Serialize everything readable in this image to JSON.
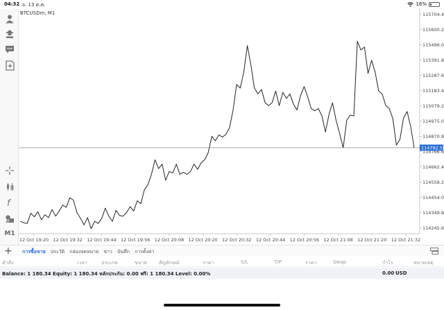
{
  "status": {
    "time": "04:32",
    "date": "จ. 13 ต.ค.",
    "battery": "16%",
    "battery_level": 0.16
  },
  "chart": {
    "symbol_label": "BTCUSDm, M1",
    "current_price": "114792.59"
  },
  "chart_data": {
    "type": "line",
    "title": "BTCUSDm, M1",
    "xlabel": "",
    "ylabel": "",
    "ylim": [
      114205,
      115740
    ],
    "price_ticks": [
      "115704.40",
      "115600.20",
      "115496.00",
      "115391.80",
      "115287.60",
      "115183.40",
      "115079.20",
      "114975.00",
      "114870.80",
      "114766.60",
      "114662.40",
      "114558.20",
      "114454.00",
      "114349.80",
      "114245.60"
    ],
    "price_tick_values": [
      115704.4,
      115600.2,
      115496.0,
      115391.8,
      115287.6,
      115183.4,
      115079.2,
      114975.0,
      114870.8,
      114766.6,
      114662.4,
      114558.2,
      114454.0,
      114349.8,
      114245.6
    ],
    "time_ticks": [
      "12 Oct 19:20",
      "12 Oct 19:32",
      "12 Oct 19:44",
      "12 Oct 19:56",
      "12 Oct 20:08",
      "12 Oct 20:20",
      "12 Oct 20:32",
      "12 Oct 20:44",
      "12 Oct 20:56",
      "12 Oct 21:08",
      "12 Oct 21:20",
      "12 Oct 21:32"
    ],
    "grid": false,
    "series": [
      {
        "values": [
          114290,
          114280,
          114275,
          114345,
          114320,
          114355,
          114300,
          114335,
          114315,
          114370,
          114325,
          114360,
          114400,
          114385,
          114450,
          114435,
          114350,
          114310,
          114265,
          114315,
          114240,
          114290,
          114275,
          114310,
          114380,
          114325,
          114290,
          114365,
          114330,
          114325,
          114350,
          114390,
          114360,
          114430,
          114410,
          114505,
          114540,
          114610,
          114710,
          114650,
          114680,
          114570,
          114630,
          114620,
          114680,
          114610,
          114625,
          114610,
          114630,
          114680,
          114645,
          114690,
          114710,
          114760,
          114870,
          114840,
          114880,
          114865,
          114885,
          114930,
          115050,
          115225,
          115200,
          115310,
          115490,
          115360,
          115200,
          115160,
          115190,
          115100,
          115080,
          115100,
          115180,
          115080,
          115170,
          115130,
          115160,
          115090,
          115050,
          115150,
          115210,
          115140,
          115060,
          115045,
          115060,
          115010,
          114900,
          115020,
          115100,
          114980,
          114890,
          114792,
          114980,
          115015,
          115010,
          115520,
          115460,
          115480,
          115300,
          115390,
          115310,
          115180,
          115160,
          115080,
          115060,
          114990,
          114810,
          114850,
          114995,
          115040,
          114940,
          114792
        ]
      }
    ]
  },
  "tabs": {
    "items": [
      "การซื้อขาย",
      "ประวัติ",
      "กล่องจดหมาย",
      "ข่าว",
      "บันทึก",
      "การตั้งค่า"
    ],
    "active_index": 0
  },
  "columns": [
    "คำสั่ง",
    "เวลา",
    "ประเภท",
    "ขนาด",
    "สัญลักษณ์",
    "ราคา",
    "S/L",
    "T/P",
    "ราคา",
    "Swap",
    "กำไร",
    "หมายเหตุ"
  ],
  "balance": {
    "text": "Balance: 1 180.34 Equity: 1 180.34 หลักประกัน: 0.00 ฟรี: 1 180.34 Level: 0.00%",
    "profit": "0.00",
    "currency": "USD"
  },
  "icons": {
    "left_tools": [
      "account-icon",
      "signal-icon",
      "chat-icon",
      "new-order-icon",
      "crosshair-icon",
      "chart-type-icon",
      "indicators-icon",
      "objects-icon"
    ],
    "timeframe_label": "M1"
  },
  "colors": {
    "line": "#222222",
    "accent": "#2a6fd6",
    "price_tag": "#2a6fd6"
  }
}
